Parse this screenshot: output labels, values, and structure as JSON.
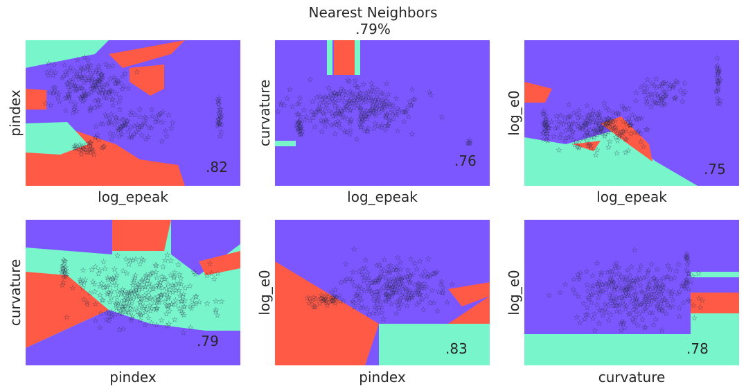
{
  "figure": {
    "title_line1": "Nearest Neighbors",
    "title_line2": ".79%"
  },
  "colors": {
    "class_a": "#7c57ff",
    "class_b": "#79f5cb",
    "class_c": "#fe5a45",
    "points": "#262640"
  },
  "chart_data": [
    {
      "type": "scatter",
      "title": "",
      "xlabel": "log_epeak",
      "ylabel": "pindex",
      "score": ".82",
      "grid": false
    },
    {
      "type": "scatter",
      "title": "",
      "xlabel": "log_epeak",
      "ylabel": "curvature",
      "score": ".76",
      "grid": false
    },
    {
      "type": "scatter",
      "title": "",
      "xlabel": "log_epeak",
      "ylabel": "log_e0",
      "score": ".75",
      "grid": false
    },
    {
      "type": "scatter",
      "title": "",
      "xlabel": "pindex",
      "ylabel": "curvature",
      "score": ".79",
      "grid": false
    },
    {
      "type": "scatter",
      "title": "",
      "xlabel": "pindex",
      "ylabel": "log_e0",
      "score": ".83",
      "grid": false
    },
    {
      "type": "scatter",
      "title": "",
      "xlabel": "curvature",
      "ylabel": "log_e0",
      "score": ".78",
      "grid": false
    }
  ]
}
